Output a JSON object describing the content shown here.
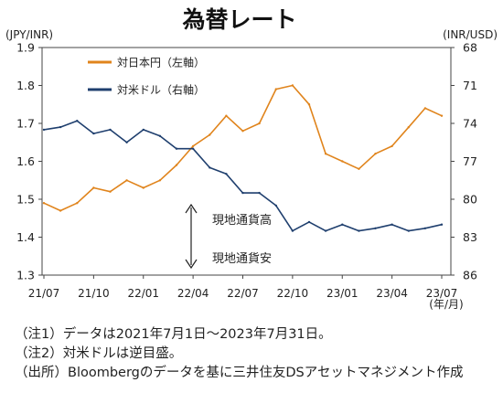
{
  "chart_data": {
    "type": "line",
    "title": "為替レート",
    "left_axis_unit": "(JPY/INR)",
    "right_axis_unit": "(INR/USD)",
    "x_unit": "(年/月)",
    "x_ticks": [
      "21/07",
      "21/10",
      "22/01",
      "22/04",
      "22/07",
      "22/10",
      "23/01",
      "23/04",
      "23/07"
    ],
    "left_ylim": [
      1.3,
      1.9
    ],
    "left_yticks": [
      "1.3",
      "1.4",
      "1.5",
      "1.6",
      "1.7",
      "1.8",
      "1.9"
    ],
    "right_ylim": [
      68,
      86
    ],
    "right_inverted": true,
    "right_yticks": [
      "68",
      "71",
      "74",
      "77",
      "80",
      "83",
      "86"
    ],
    "grid": false,
    "legend_position": "top-left",
    "series": [
      {
        "name": "対日本円（左軸）",
        "axis": "left",
        "color": "#E0841C",
        "x": [
          "21/07",
          "21/08",
          "21/09",
          "21/10",
          "21/11",
          "21/12",
          "22/01",
          "22/02",
          "22/03",
          "22/04",
          "22/05",
          "22/06",
          "22/07",
          "22/08",
          "22/09",
          "22/10",
          "22/11",
          "22/12",
          "23/01",
          "23/02",
          "23/03",
          "23/04",
          "23/05",
          "23/06",
          "23/07"
        ],
        "values": [
          1.49,
          1.47,
          1.49,
          1.53,
          1.52,
          1.55,
          1.53,
          1.55,
          1.59,
          1.64,
          1.67,
          1.72,
          1.68,
          1.7,
          1.79,
          1.8,
          1.75,
          1.62,
          1.6,
          1.58,
          1.62,
          1.64,
          1.69,
          1.74,
          1.72
        ]
      },
      {
        "name": "対米ドル（右軸）",
        "axis": "right",
        "color": "#1F3F6E",
        "x": [
          "21/07",
          "21/08",
          "21/09",
          "21/10",
          "21/11",
          "21/12",
          "22/01",
          "22/02",
          "22/03",
          "22/04",
          "22/05",
          "22/06",
          "22/07",
          "22/08",
          "22/09",
          "22/10",
          "22/11",
          "22/12",
          "23/01",
          "23/02",
          "23/03",
          "23/04",
          "23/05",
          "23/06",
          "23/07"
        ],
        "values": [
          74.5,
          74.3,
          73.8,
          74.8,
          74.5,
          75.5,
          74.5,
          75.0,
          76.0,
          76.0,
          77.5,
          78.0,
          79.5,
          79.5,
          80.5,
          82.5,
          81.8,
          82.5,
          82.0,
          82.5,
          82.3,
          82.0,
          82.5,
          82.3,
          82.0
        ]
      }
    ],
    "annotations": {
      "up_label": "現地通貨高",
      "down_label": "現地通貨安"
    }
  },
  "notes": [
    "（注1）データは2021年7月1日～2023年7月31日。",
    "（注2）対米ドルは逆目盛。",
    "（出所）Bloombergのデータを基に三井住友DSアセットマネジメント作成"
  ]
}
